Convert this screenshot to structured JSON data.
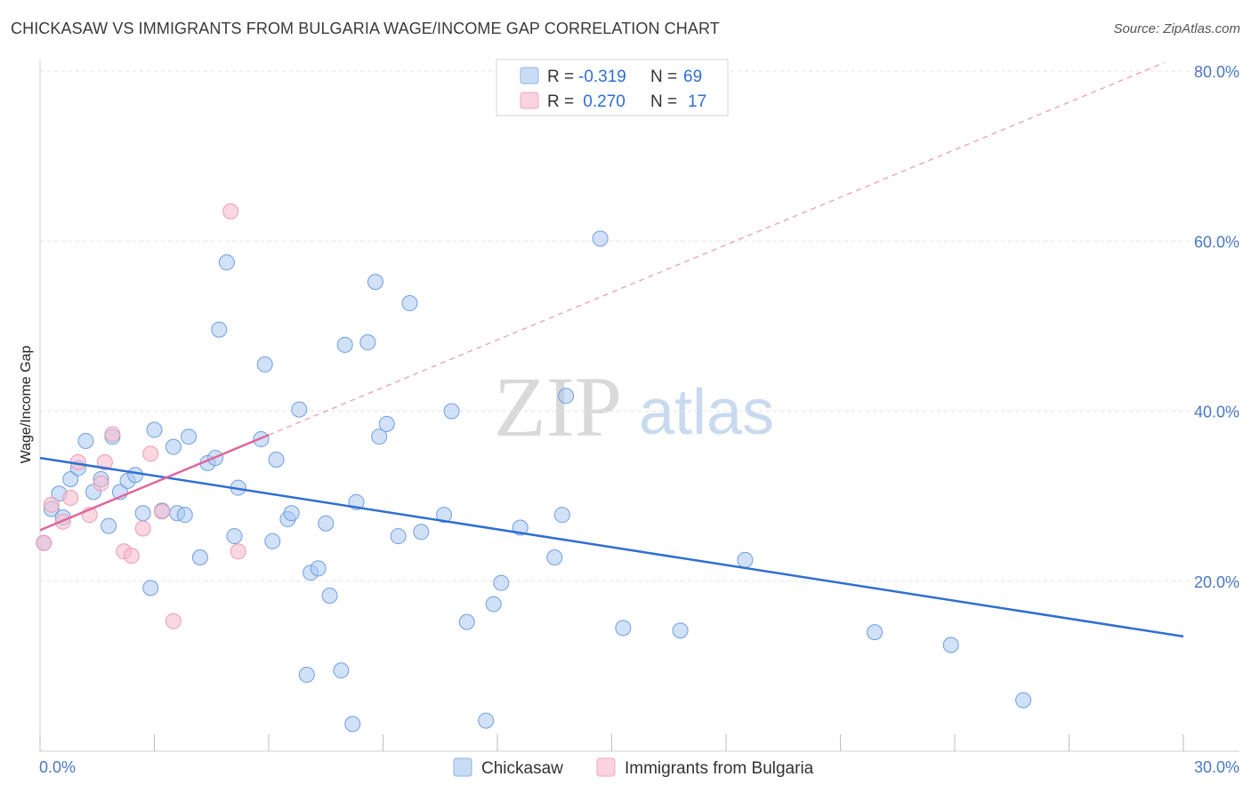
{
  "title": "CHICKASAW VS IMMIGRANTS FROM BULGARIA WAGE/INCOME GAP CORRELATION CHART",
  "source": "Source: ZipAtlas.com",
  "watermark": {
    "zip": "ZIP",
    "atlas": "atlas"
  },
  "legend": {
    "rows": [
      {
        "r_label": "R =",
        "r_value": "-0.319",
        "n_label": "N =",
        "n_value": "69"
      },
      {
        "r_label": "R =",
        "r_value": " 0.270",
        "n_label": "N =",
        "n_value": "17"
      }
    ]
  },
  "chart_data": {
    "type": "scatter",
    "title": "CHICKASAW VS IMMIGRANTS FROM BULGARIA WAGE/INCOME GAP CORRELATION CHART",
    "xlabel": "",
    "ylabel": "Wage/Income Gap",
    "xlim": [
      0,
      30
    ],
    "ylim": [
      0,
      80
    ],
    "x_tick_labels": [
      "0.0%",
      "30.0%"
    ],
    "y_tick_values": [
      20,
      40,
      60,
      80
    ],
    "y_tick_labels": [
      "20.0%",
      "40.0%",
      "60.0%",
      "80.0%"
    ],
    "grid": true,
    "colors": {
      "chickasaw": "#a9c8f2",
      "chickasaw_line": "#2f6fd1",
      "bulgaria": "#f6bccd",
      "bulgaria_line": "#e0669a"
    },
    "series": [
      {
        "name": "Chickasaw",
        "points": [
          [
            0.1,
            24.5
          ],
          [
            0.3,
            28.5
          ],
          [
            0.5,
            30.3
          ],
          [
            0.6,
            27.5
          ],
          [
            0.8,
            32.0
          ],
          [
            1.0,
            33.3
          ],
          [
            1.2,
            36.5
          ],
          [
            1.4,
            30.5
          ],
          [
            1.6,
            32.0
          ],
          [
            1.8,
            26.5
          ],
          [
            1.9,
            37.0
          ],
          [
            2.1,
            30.5
          ],
          [
            2.3,
            31.8
          ],
          [
            2.5,
            32.5
          ],
          [
            2.7,
            28.0
          ],
          [
            2.9,
            19.2
          ],
          [
            3.0,
            37.8
          ],
          [
            3.2,
            28.3
          ],
          [
            3.5,
            35.8
          ],
          [
            3.6,
            28.0
          ],
          [
            3.8,
            27.8
          ],
          [
            3.9,
            37.0
          ],
          [
            4.2,
            22.8
          ],
          [
            4.4,
            33.9
          ],
          [
            4.6,
            34.5
          ],
          [
            4.7,
            49.6
          ],
          [
            4.9,
            57.5
          ],
          [
            5.1,
            25.3
          ],
          [
            5.2,
            31.0
          ],
          [
            5.8,
            36.7
          ],
          [
            5.9,
            45.5
          ],
          [
            6.1,
            24.7
          ],
          [
            6.2,
            34.3
          ],
          [
            6.5,
            27.3
          ],
          [
            6.6,
            28.0
          ],
          [
            6.8,
            40.2
          ],
          [
            7.0,
            9.0
          ],
          [
            7.1,
            21.0
          ],
          [
            7.3,
            21.5
          ],
          [
            7.5,
            26.8
          ],
          [
            7.6,
            18.3
          ],
          [
            7.9,
            9.5
          ],
          [
            8.0,
            47.8
          ],
          [
            8.2,
            3.2
          ],
          [
            8.3,
            29.3
          ],
          [
            8.6,
            48.1
          ],
          [
            8.8,
            55.2
          ],
          [
            8.9,
            37.0
          ],
          [
            9.1,
            38.5
          ],
          [
            9.4,
            25.3
          ],
          [
            9.7,
            52.7
          ],
          [
            10.0,
            25.8
          ],
          [
            10.6,
            27.8
          ],
          [
            10.8,
            40.0
          ],
          [
            11.2,
            15.2
          ],
          [
            11.7,
            3.6
          ],
          [
            11.9,
            17.3
          ],
          [
            12.1,
            19.8
          ],
          [
            12.6,
            26.3
          ],
          [
            13.5,
            22.8
          ],
          [
            13.7,
            27.8
          ],
          [
            13.8,
            41.8
          ],
          [
            14.7,
            60.3
          ],
          [
            15.3,
            14.5
          ],
          [
            16.8,
            14.2
          ],
          [
            18.5,
            22.5
          ],
          [
            21.9,
            14.0
          ],
          [
            23.9,
            12.5
          ],
          [
            25.8,
            6.0
          ]
        ],
        "trend": {
          "x": [
            0,
            30
          ],
          "y": [
            34.5,
            13.5
          ]
        }
      },
      {
        "name": "Immigrants from Bulgaria",
        "points": [
          [
            0.1,
            24.5
          ],
          [
            0.3,
            29.0
          ],
          [
            0.6,
            27.0
          ],
          [
            0.8,
            29.8
          ],
          [
            1.0,
            34.0
          ],
          [
            1.3,
            27.8
          ],
          [
            1.6,
            31.5
          ],
          [
            1.7,
            34.0
          ],
          [
            1.9,
            37.3
          ],
          [
            2.2,
            23.5
          ],
          [
            2.4,
            23.0
          ],
          [
            2.7,
            26.2
          ],
          [
            2.9,
            35.0
          ],
          [
            3.2,
            28.2
          ],
          [
            3.5,
            15.3
          ],
          [
            5.0,
            63.5
          ],
          [
            5.2,
            23.5
          ]
        ],
        "trend": {
          "x": [
            0,
            6.0
          ],
          "y": [
            26.0,
            37.2
          ]
        },
        "trend_extended": {
          "x": [
            6.0,
            29.5
          ],
          "y": [
            37.2,
            81.0
          ]
        }
      }
    ]
  },
  "bottom_legend": [
    {
      "label": "Chickasaw"
    },
    {
      "label": "Immigrants from Bulgaria"
    }
  ]
}
